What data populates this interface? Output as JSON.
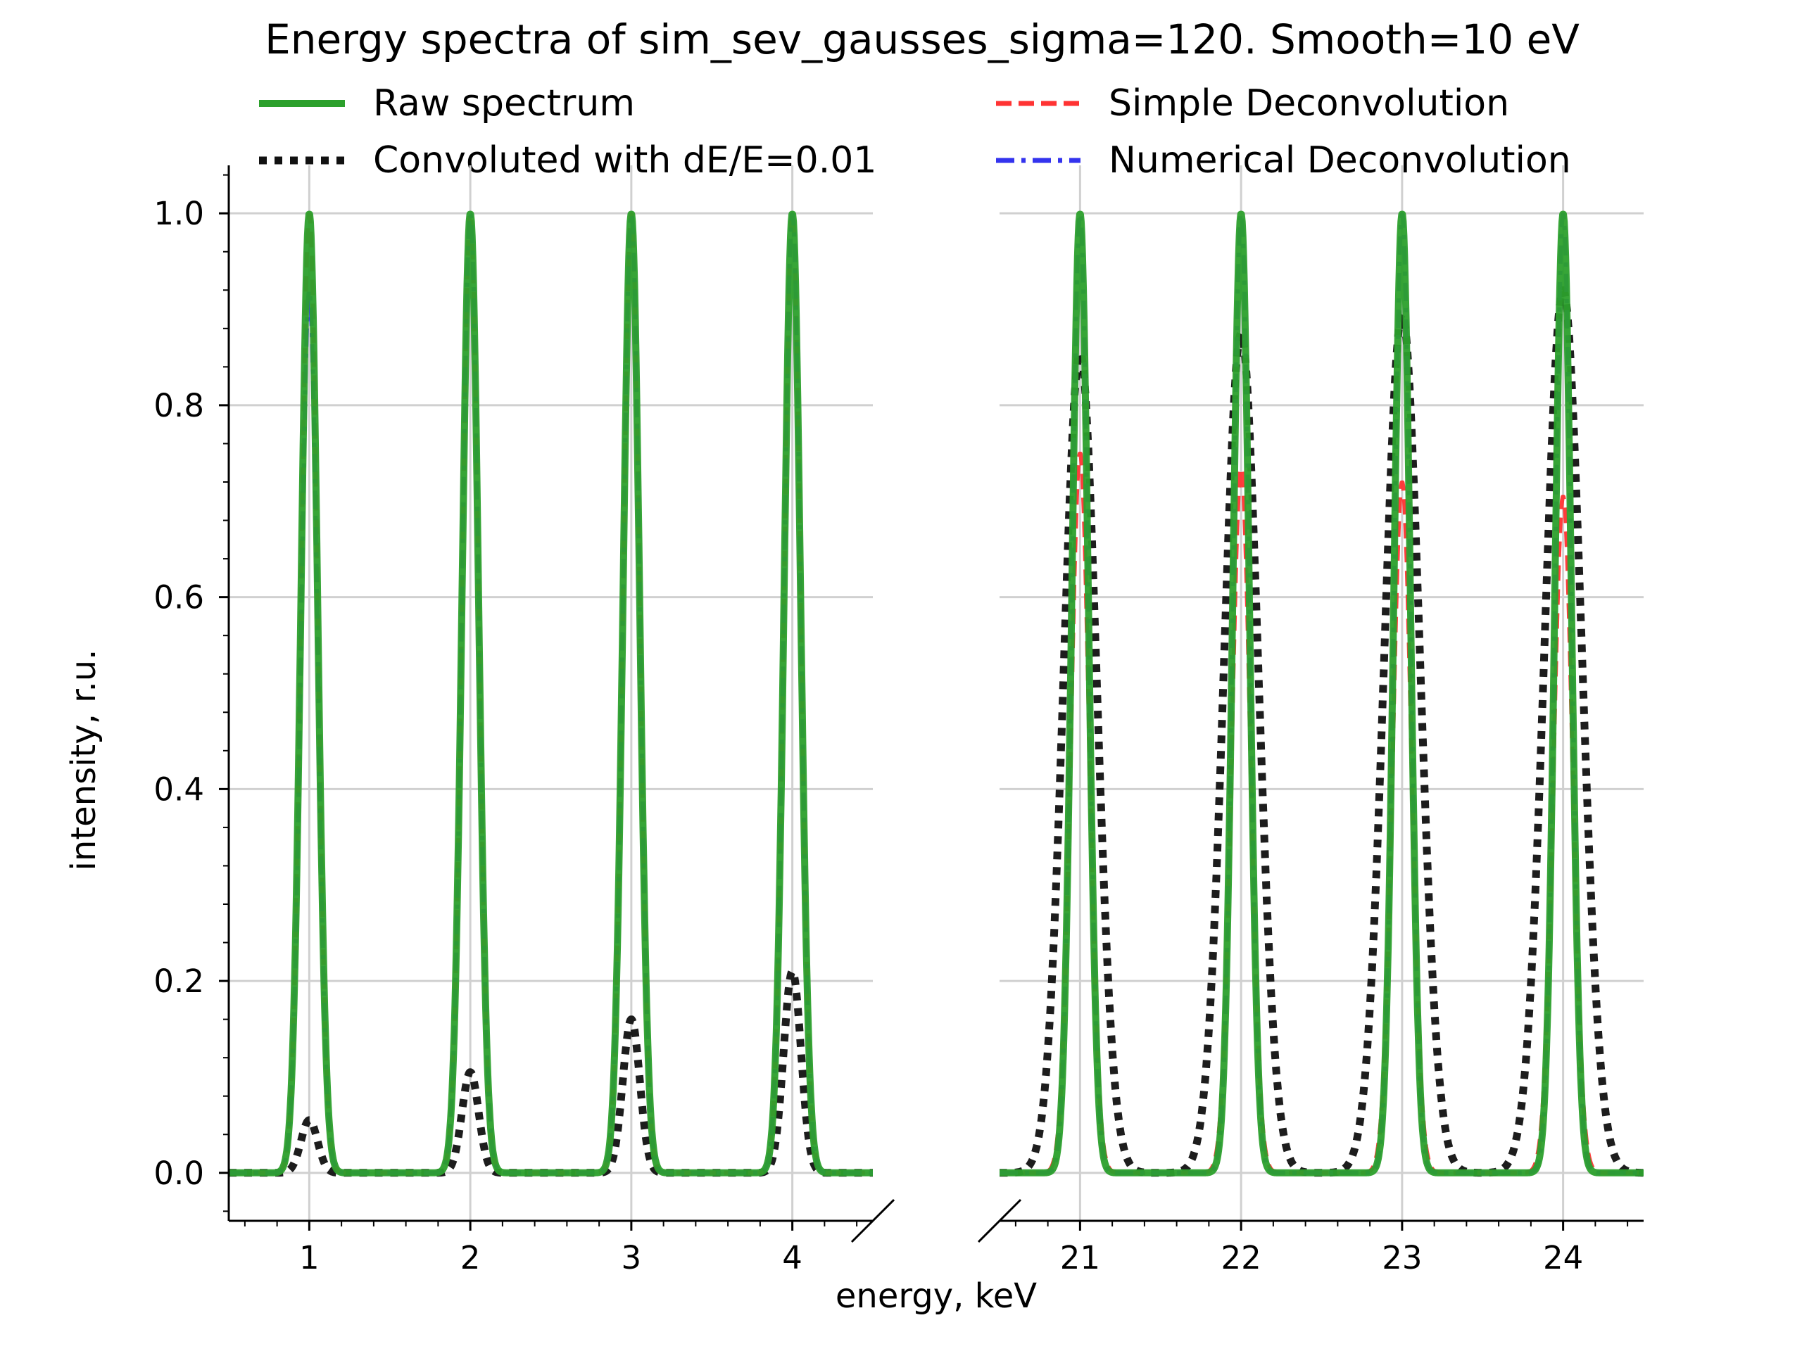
{
  "chart_data": {
    "type": "line",
    "title": "Energy spectra of sim_sev_gausses_sigma=120. Smooth=10 eV",
    "xlabel": "energy, keV",
    "ylabel": "intensity, r.u.",
    "ylim": [
      -0.05,
      1.05
    ],
    "grid": true,
    "broken_x_axis": true,
    "legend_position": "top",
    "panels": [
      {
        "xlim": [
          0.5,
          4.5
        ],
        "xticks": [
          "1",
          "2",
          "3",
          "4"
        ]
      },
      {
        "xlim": [
          20.5,
          24.5
        ],
        "xticks": [
          "21",
          "22",
          "23",
          "24"
        ]
      }
    ],
    "yticks": [
      "0.0",
      "0.2",
      "0.4",
      "0.6",
      "0.8",
      "1.0"
    ],
    "peak_energies": [
      1,
      2,
      3,
      4,
      21,
      22,
      23,
      24
    ],
    "series": [
      {
        "name": "Raw spectrum",
        "color": "#2ca02c",
        "style": "solid",
        "peak_values": [
          1.0,
          1.0,
          1.0,
          1.0,
          1.0,
          1.0,
          1.0,
          1.0
        ]
      },
      {
        "name": "Simple Deconvolution",
        "color": "#ff3333",
        "style": "dashed",
        "peak_values": [
          1.0,
          1.0,
          1.0,
          1.0,
          0.75,
          0.735,
          0.72,
          0.705
        ]
      },
      {
        "name": "Convoluted with dE/E=0.01",
        "color": "#111111",
        "style": "dotted",
        "peak_values": [
          0.055,
          0.105,
          0.16,
          0.21,
          0.855,
          0.875,
          0.895,
          0.92
        ]
      },
      {
        "name": "Numerical Deconvolution",
        "color": "#3333ee",
        "style": "dashdot",
        "peak_values": [
          0.92,
          1.0,
          1.0,
          1.0,
          1.0,
          1.0,
          1.0,
          1.0
        ]
      }
    ]
  }
}
